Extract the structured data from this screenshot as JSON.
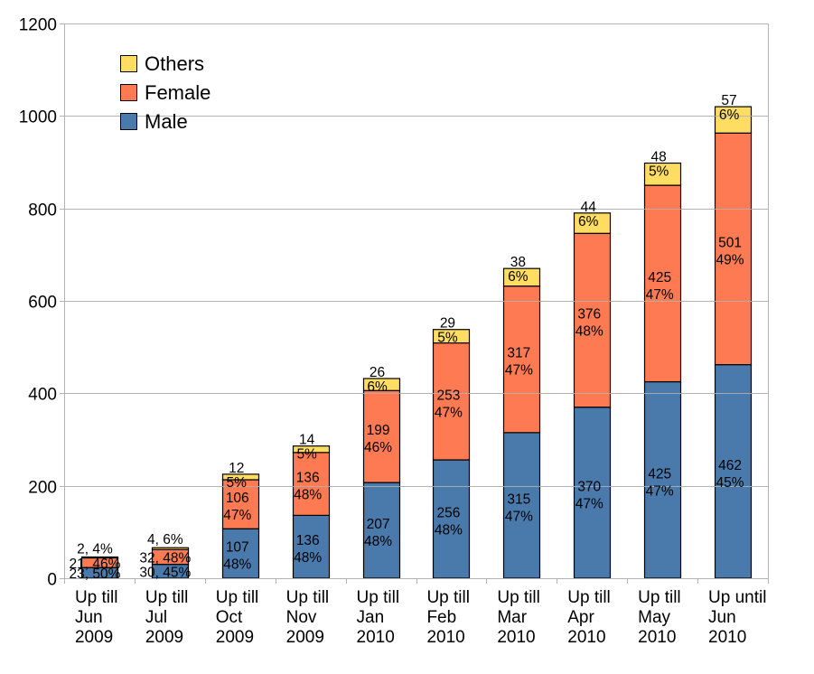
{
  "chart_data": {
    "type": "bar",
    "stacked": true,
    "title": "",
    "xlabel": "",
    "ylabel": "",
    "ylim": [
      0,
      1200
    ],
    "yticks": [
      0,
      200,
      400,
      600,
      800,
      1000,
      1200
    ],
    "grid": true,
    "legend_position": "top-left",
    "categories": [
      [
        "Up till",
        "Jun",
        "2009"
      ],
      [
        "Up till",
        "Jul",
        "2009"
      ],
      [
        "Up till",
        "Oct",
        "2009"
      ],
      [
        "Up till",
        "Nov",
        "2009"
      ],
      [
        "Up till",
        "Jan",
        "2010"
      ],
      [
        "Up till",
        "Feb",
        "2010"
      ],
      [
        "Up till",
        "Mar",
        "2010"
      ],
      [
        "Up till",
        "Apr",
        "2010"
      ],
      [
        "Up till",
        "May",
        "2010"
      ],
      [
        "Up until",
        "Jun",
        "2010"
      ]
    ],
    "series": [
      {
        "name": "Male",
        "color": "#4a7aac",
        "values": [
          23,
          30,
          107,
          136,
          207,
          256,
          315,
          370,
          425,
          462
        ],
        "labels": [
          [
            "23, 50%"
          ],
          [
            "30, 45%"
          ],
          [
            "107",
            "48%"
          ],
          [
            "136",
            "48%"
          ],
          [
            "207",
            "48%"
          ],
          [
            "256",
            "48%"
          ],
          [
            "315",
            "47%"
          ],
          [
            "370",
            "47%"
          ],
          [
            "425",
            "47%"
          ],
          [
            "462",
            "45%"
          ]
        ]
      },
      {
        "name": "Female",
        "color": "#fe7a52",
        "values": [
          21,
          32,
          106,
          136,
          199,
          253,
          317,
          376,
          425,
          501
        ],
        "labels": [
          [
            "21, 46%"
          ],
          [
            "32, 48%"
          ],
          [
            "106",
            "47%"
          ],
          [
            "136",
            "48%"
          ],
          [
            "199",
            "46%"
          ],
          [
            "253",
            "47%"
          ],
          [
            "317",
            "47%"
          ],
          [
            "376",
            "48%"
          ],
          [
            "425",
            "47%"
          ],
          [
            "501",
            "49%"
          ]
        ]
      },
      {
        "name": "Others",
        "color": "#ffdd62",
        "values": [
          2,
          4,
          12,
          14,
          26,
          29,
          38,
          44,
          48,
          57
        ],
        "labels": [
          [
            "2, 4%"
          ],
          [
            "4, 6%"
          ],
          [
            "12",
            "5%"
          ],
          [
            "14",
            "5%"
          ],
          [
            "26",
            "6%"
          ],
          [
            "29",
            "5%"
          ],
          [
            "38",
            "6%"
          ],
          [
            "44",
            "6%"
          ],
          [
            "48",
            "5%"
          ],
          [
            "57",
            "6%"
          ]
        ]
      }
    ],
    "legend_order": [
      "Others",
      "Female",
      "Male"
    ]
  }
}
